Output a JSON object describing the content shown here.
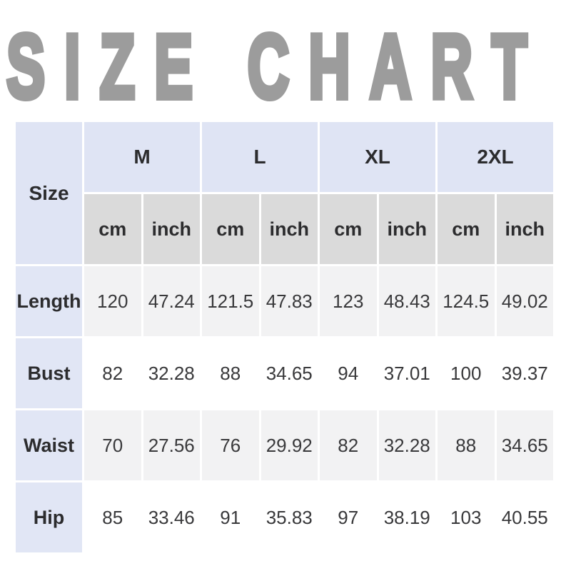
{
  "title": "SIZE CHART",
  "colors": {
    "title_gray": "#9c9c9c",
    "header_lavender": "#dfe4f4",
    "label_lavender": "#e1e6f5",
    "unit_gray": "#dadada",
    "row_alt_gray": "#f2f2f3",
    "row_white": "#ffffff",
    "text_dark": "#2c2c2e"
  },
  "table": {
    "corner_label": "Size",
    "size_groups": [
      "M",
      "L",
      "XL",
      "2XL"
    ],
    "unit_labels": [
      "cm",
      "inch"
    ],
    "rows": [
      {
        "label": "Length",
        "values": [
          "120",
          "47.24",
          "121.5",
          "47.83",
          "123",
          "48.43",
          "124.5",
          "49.02"
        ]
      },
      {
        "label": "Bust",
        "values": [
          "82",
          "32.28",
          "88",
          "34.65",
          "94",
          "37.01",
          "100",
          "39.37"
        ]
      },
      {
        "label": "Waist",
        "values": [
          "70",
          "27.56",
          "76",
          "29.92",
          "82",
          "32.28",
          "88",
          "34.65"
        ]
      },
      {
        "label": "Hip",
        "values": [
          "85",
          "33.46",
          "91",
          "35.83",
          "97",
          "38.19",
          "103",
          "40.55"
        ]
      }
    ]
  }
}
